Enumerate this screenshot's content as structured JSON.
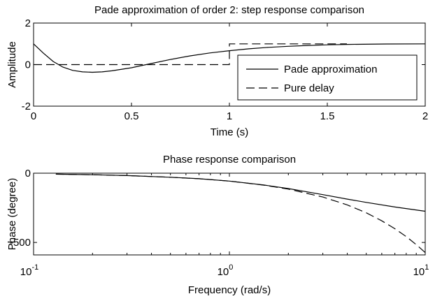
{
  "chart_data": [
    {
      "type": "line",
      "title": "Pade approximation of order 2: step response comparison",
      "xlabel": "Time (s)",
      "ylabel": "Amplitude",
      "xlim": [
        0,
        2
      ],
      "ylim": [
        -2,
        2
      ],
      "xticks": [
        0,
        0.5,
        1,
        1.5,
        2
      ],
      "xtick_labels": [
        "0",
        "0.5",
        "1",
        "1.5",
        "2"
      ],
      "yticks": [
        -2,
        0,
        2
      ],
      "ytick_labels": [
        "-2",
        "0",
        "2"
      ],
      "grid": false,
      "legend": {
        "placement": "lower-right"
      },
      "series": [
        {
          "name": "Pade approximation",
          "style": "solid",
          "x": [
            0,
            0.05,
            0.1,
            0.15,
            0.2,
            0.25,
            0.3,
            0.35,
            0.4,
            0.5,
            0.6,
            0.7,
            0.8,
            0.9,
            1.0,
            1.1,
            1.2,
            1.3,
            1.4,
            1.5,
            1.6,
            1.8,
            2.0
          ],
          "y": [
            1.0,
            0.55,
            0.15,
            -0.12,
            -0.28,
            -0.35,
            -0.37,
            -0.35,
            -0.3,
            -0.15,
            0.05,
            0.25,
            0.42,
            0.56,
            0.67,
            0.76,
            0.83,
            0.88,
            0.92,
            0.95,
            0.97,
            0.99,
            1.0
          ]
        },
        {
          "name": "Pure delay",
          "style": "dashed",
          "x": [
            0,
            1.0,
            1.0,
            1.6
          ],
          "y": [
            0,
            0,
            1.0,
            1.0
          ]
        }
      ]
    },
    {
      "type": "line",
      "title": "Phase response comparison",
      "xlabel": "Frequency (rad/s)",
      "ylabel": "Phase (degree)",
      "xscale": "log",
      "xlim": [
        0.1,
        10
      ],
      "ylim": [
        -590,
        0
      ],
      "xticks": [
        0.1,
        1,
        10
      ],
      "xtick_labels": [
        {
          "base": "10",
          "exp": "-1"
        },
        {
          "base": "10",
          "exp": "0"
        },
        {
          "base": "10",
          "exp": "1"
        }
      ],
      "yticks": [
        0,
        -500
      ],
      "ytick_labels": [
        "0",
        "-500"
      ],
      "grid": false,
      "series": [
        {
          "style": "solid",
          "x": [
            0.13,
            0.2,
            0.3,
            0.5,
            0.7,
            1.0,
            1.5,
            2.0,
            3.0,
            4.0,
            5.0,
            7.0,
            10.0
          ],
          "y": [
            -7,
            -11,
            -17,
            -29,
            -40,
            -57,
            -85,
            -111,
            -155,
            -187,
            -211,
            -244,
            -275
          ]
        },
        {
          "style": "dashed",
          "x": [
            0.13,
            0.2,
            0.3,
            0.5,
            0.7,
            1.0,
            1.5,
            2.0,
            3.0,
            4.0,
            5.0,
            6.0,
            7.0,
            8.0,
            9.0,
            10.0
          ],
          "y": [
            -7,
            -11,
            -17,
            -29,
            -40,
            -57,
            -86,
            -115,
            -172,
            -229,
            -286,
            -344,
            -401,
            -458,
            -516,
            -573
          ]
        }
      ]
    }
  ]
}
